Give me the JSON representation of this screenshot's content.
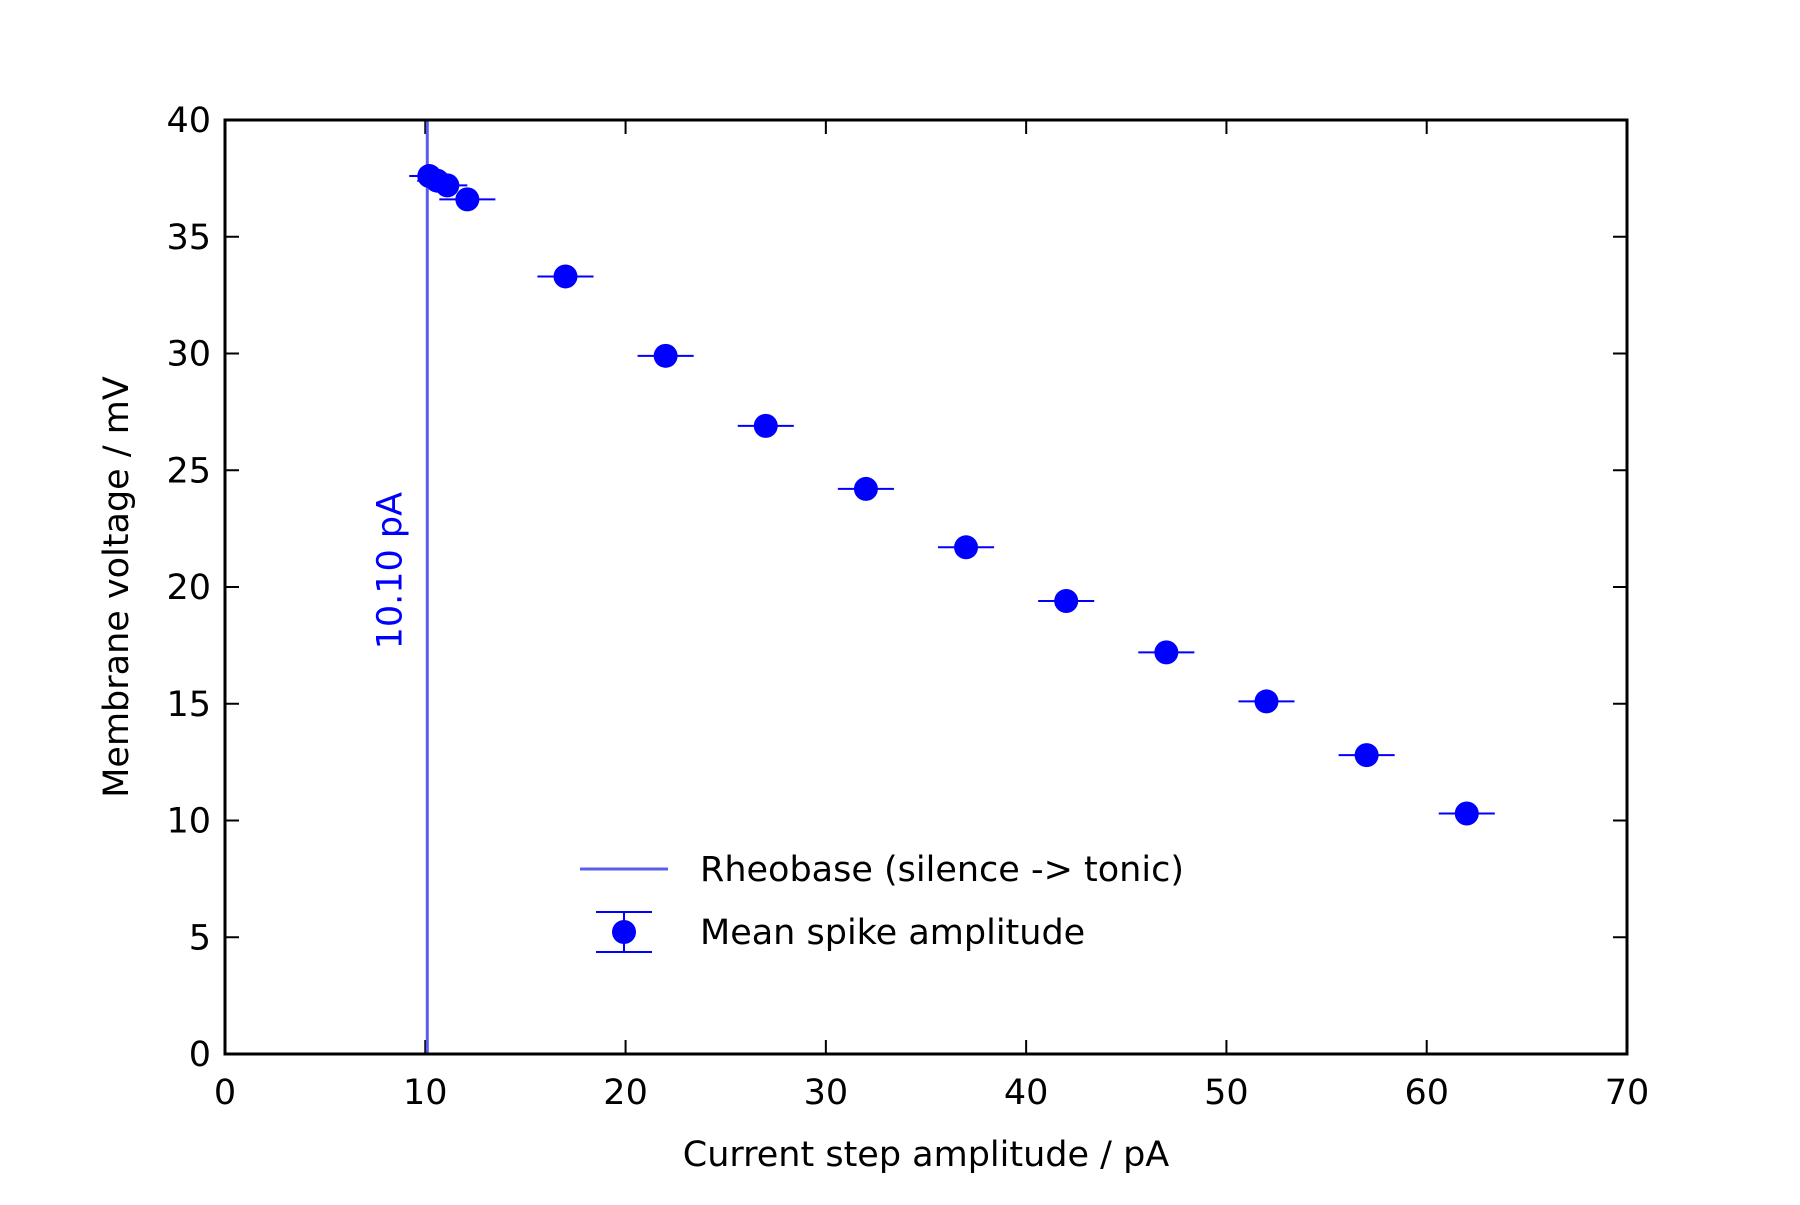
{
  "chart_data": {
    "type": "scatter",
    "title": "",
    "xlabel": "Current step amplitude / pA",
    "ylabel": "Membrane voltage / mV",
    "xlim": [
      0,
      70
    ],
    "ylim": [
      0,
      40
    ],
    "xticks": [
      0,
      10,
      20,
      30,
      40,
      50,
      60,
      70
    ],
    "yticks": [
      0,
      5,
      10,
      15,
      20,
      25,
      30,
      35,
      40
    ],
    "grid": false,
    "legend_position": "lower-center",
    "series": [
      {
        "name": "Mean spike amplitude",
        "kind": "errorbar-points",
        "color": "#0000ff",
        "x": [
          10.2,
          10.6,
          11.1,
          12.1,
          17.0,
          22.0,
          27.0,
          32.0,
          37.0,
          42.0,
          47.0,
          52.0,
          57.0,
          62.0
        ],
        "y": [
          37.6,
          37.4,
          37.2,
          36.6,
          33.3,
          29.9,
          26.9,
          24.2,
          21.7,
          19.4,
          17.2,
          15.1,
          12.8,
          10.3
        ],
        "xerr": [
          1.0,
          1.0,
          1.0,
          1.4,
          1.4,
          1.4,
          1.4,
          1.4,
          1.4,
          1.4,
          1.4,
          1.4,
          1.4,
          1.4
        ],
        "yerr": [
          0.15,
          0.15,
          0.15,
          0.15,
          0.1,
          0.1,
          0.1,
          0.1,
          0.1,
          0.1,
          0.1,
          0.1,
          0.1,
          0.1
        ]
      },
      {
        "name": "Rheobase (silence -> tonic)",
        "kind": "vline",
        "color": "#5b5bf0",
        "x": 10.1
      }
    ],
    "annotations": [
      {
        "text": "10.10 pA",
        "x": 10.1,
        "y": 20.7,
        "color": "#0000ff",
        "rotation": "vertical"
      }
    ]
  }
}
